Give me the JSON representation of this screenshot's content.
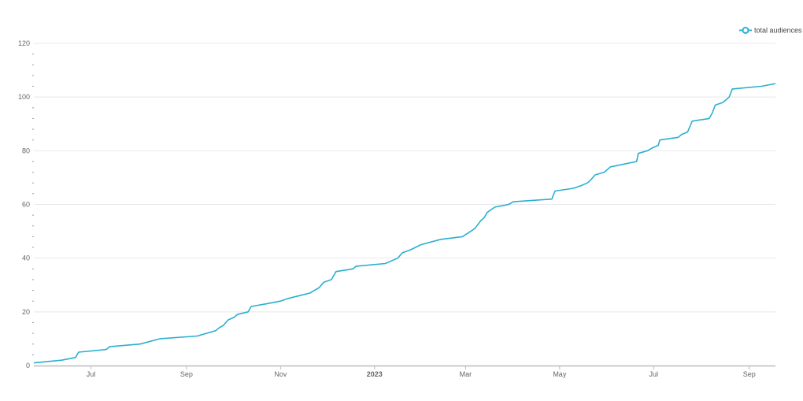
{
  "chart_data": {
    "type": "line",
    "title": "",
    "xlabel": "",
    "ylabel": "",
    "legend": {
      "placement": "top-right",
      "entries": [
        "total audiences"
      ]
    },
    "grid": {
      "horizontal": true,
      "vertical": false
    },
    "colors": {
      "series": "#2bafd0",
      "grid": "#e8e8ee",
      "axis": "#bbbbbb"
    },
    "xlim": [
      "2022-05-25",
      "2023-09-18"
    ],
    "ylim": [
      0,
      120
    ],
    "y_major_ticks": [
      0,
      20,
      40,
      60,
      80,
      100,
      120
    ],
    "y_minor_step": 4,
    "x_ticks": [
      {
        "date": "2022-07-01",
        "label": "Jul",
        "bold": false
      },
      {
        "date": "2022-09-01",
        "label": "Sep",
        "bold": false
      },
      {
        "date": "2022-11-01",
        "label": "Nov",
        "bold": false
      },
      {
        "date": "2023-01-01",
        "label": "2023",
        "bold": true
      },
      {
        "date": "2023-03-01",
        "label": "Mar",
        "bold": false
      },
      {
        "date": "2023-05-01",
        "label": "May",
        "bold": false
      },
      {
        "date": "2023-07-01",
        "label": "Jul",
        "bold": false
      },
      {
        "date": "2023-09-01",
        "label": "Sep",
        "bold": false
      }
    ],
    "series": [
      {
        "name": "total audiences",
        "points": [
          [
            "2022-05-25",
            1
          ],
          [
            "2022-06-12",
            2
          ],
          [
            "2022-06-21",
            3
          ],
          [
            "2022-06-23",
            5
          ],
          [
            "2022-07-11",
            6
          ],
          [
            "2022-07-13",
            7
          ],
          [
            "2022-08-02",
            8
          ],
          [
            "2022-08-15",
            10
          ],
          [
            "2022-09-08",
            11
          ],
          [
            "2022-09-14",
            12
          ],
          [
            "2022-09-20",
            13
          ],
          [
            "2022-09-22",
            14
          ],
          [
            "2022-09-25",
            15
          ],
          [
            "2022-09-28",
            17
          ],
          [
            "2022-10-02",
            18
          ],
          [
            "2022-10-04",
            19
          ],
          [
            "2022-10-11",
            20
          ],
          [
            "2022-10-13",
            22
          ],
          [
            "2022-10-23",
            23
          ],
          [
            "2022-11-01",
            24
          ],
          [
            "2022-11-06",
            25
          ],
          [
            "2022-11-20",
            27
          ],
          [
            "2022-11-26",
            29
          ],
          [
            "2022-11-29",
            31
          ],
          [
            "2022-12-04",
            32
          ],
          [
            "2022-12-07",
            35
          ],
          [
            "2022-12-18",
            36
          ],
          [
            "2022-12-20",
            37
          ],
          [
            "2023-01-08",
            38
          ],
          [
            "2023-01-16",
            40
          ],
          [
            "2023-01-19",
            42
          ],
          [
            "2023-01-24",
            43
          ],
          [
            "2023-01-31",
            45
          ],
          [
            "2023-02-13",
            47
          ],
          [
            "2023-02-27",
            48
          ],
          [
            "2023-03-07",
            51
          ],
          [
            "2023-03-11",
            54
          ],
          [
            "2023-03-13",
            55
          ],
          [
            "2023-03-15",
            57
          ],
          [
            "2023-03-20",
            59
          ],
          [
            "2023-03-29",
            60
          ],
          [
            "2023-04-01",
            61
          ],
          [
            "2023-04-26",
            62
          ],
          [
            "2023-04-28",
            65
          ],
          [
            "2023-05-10",
            66
          ],
          [
            "2023-05-15",
            67
          ],
          [
            "2023-05-19",
            68
          ],
          [
            "2023-05-21",
            69
          ],
          [
            "2023-05-24",
            71
          ],
          [
            "2023-05-30",
            72
          ],
          [
            "2023-06-03",
            74
          ],
          [
            "2023-06-20",
            76
          ],
          [
            "2023-06-21",
            79
          ],
          [
            "2023-06-27",
            80
          ],
          [
            "2023-06-30",
            81
          ],
          [
            "2023-07-04",
            82
          ],
          [
            "2023-07-05",
            84
          ],
          [
            "2023-07-17",
            85
          ],
          [
            "2023-07-19",
            86
          ],
          [
            "2023-07-23",
            87
          ],
          [
            "2023-07-26",
            91
          ],
          [
            "2023-08-06",
            92
          ],
          [
            "2023-08-08",
            94
          ],
          [
            "2023-08-10",
            97
          ],
          [
            "2023-08-15",
            98
          ],
          [
            "2023-08-19",
            100
          ],
          [
            "2023-08-21",
            103
          ],
          [
            "2023-09-09",
            104
          ],
          [
            "2023-09-18",
            105
          ]
        ]
      }
    ]
  }
}
